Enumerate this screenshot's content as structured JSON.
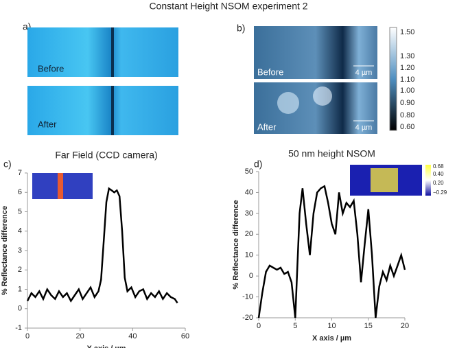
{
  "figure": {
    "title": "Constant Height NSOM experiment  2",
    "panels": [
      "a)",
      "b)",
      "c)",
      "d)"
    ],
    "image_labels": [
      "Before",
      "After",
      "Before",
      "After",
      "4 µm",
      "4 µm"
    ],
    "colorbar_labels": [
      "1.50",
      "1.30",
      "1.20",
      "1.10",
      "1.00",
      "0.90",
      "0.80",
      "0.60"
    ],
    "inset_colorbar_labels": [
      "0.68",
      "0.40",
      "0.20",
      "−0.29"
    ]
  },
  "chart_data": [
    {
      "type": "line",
      "title": "Far Field (CCD camera)",
      "xlabel": "X axis / µm",
      "ylabel": "% Reflectance difference",
      "color": "#000000",
      "x": [
        0,
        1.5,
        3,
        4.5,
        6,
        7.5,
        9,
        10.5,
        12,
        13.5,
        15,
        16.5,
        18,
        19.5,
        21,
        22.5,
        24,
        25.5,
        27,
        28,
        29,
        30,
        31,
        32,
        33,
        34,
        35,
        36,
        37,
        38,
        39.5,
        41,
        42.5,
        44,
        45.5,
        47,
        48.5,
        50,
        51.5,
        53,
        54.5,
        56,
        57
      ],
      "values": [
        0.4,
        0.8,
        0.6,
        0.9,
        0.5,
        1.0,
        0.7,
        0.5,
        0.9,
        0.6,
        0.8,
        0.4,
        0.7,
        1.0,
        0.5,
        0.8,
        1.1,
        0.6,
        0.9,
        1.5,
        3.5,
        5.5,
        6.2,
        6.1,
        6.0,
        6.1,
        5.8,
        4.0,
        1.6,
        0.9,
        1.1,
        0.6,
        0.9,
        1.0,
        0.5,
        0.8,
        0.6,
        0.9,
        0.5,
        0.8,
        0.6,
        0.5,
        0.3
      ],
      "xlim": [
        0,
        60
      ],
      "xticks": [
        0,
        20,
        40,
        60
      ],
      "ylim": [
        -1,
        7
      ],
      "yticks": [
        -1,
        0,
        1,
        2,
        3,
        4,
        5,
        6,
        7
      ]
    },
    {
      "type": "line",
      "title": "50 nm height NSOM",
      "xlabel": "X axis / µm",
      "ylabel": "% Reflectance difference",
      "color": "#000000",
      "x": [
        0,
        0.5,
        1,
        1.5,
        2,
        2.5,
        3,
        3.5,
        4,
        4.5,
        5,
        5.3,
        5.6,
        6,
        6.5,
        7,
        7.5,
        8,
        8.5,
        9,
        9.5,
        10,
        10.5,
        11,
        11.5,
        12,
        12.5,
        13,
        13.5,
        14,
        14.5,
        15,
        15.5,
        16,
        16.5,
        17,
        17.5,
        18,
        18.5,
        19,
        19.5,
        20
      ],
      "values": [
        -20,
        -8,
        2,
        5,
        4,
        3,
        4,
        1,
        2,
        -3,
        -20,
        5,
        30,
        42,
        25,
        10,
        30,
        40,
        42,
        43,
        35,
        25,
        20,
        40,
        30,
        35,
        33,
        36,
        20,
        -3,
        15,
        32,
        10,
        -20,
        -5,
        2,
        -2,
        5,
        0,
        5,
        10,
        3
      ],
      "xlim": [
        0,
        20
      ],
      "xticks": [
        0,
        5,
        10,
        15,
        20
      ],
      "ylim": [
        -20,
        50
      ],
      "yticks": [
        -20,
        -10,
        0,
        10,
        20,
        30,
        40,
        50
      ]
    }
  ]
}
